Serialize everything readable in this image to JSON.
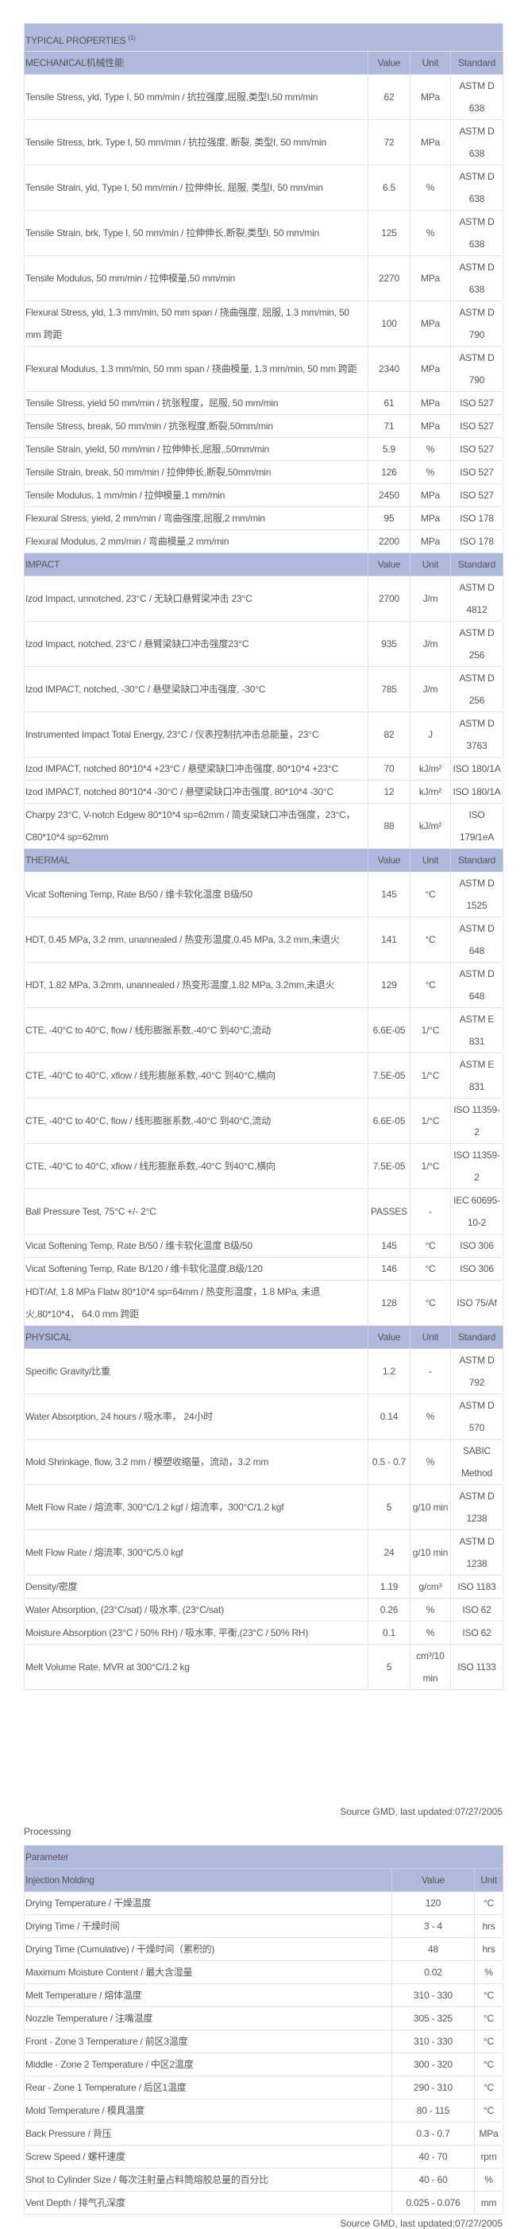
{
  "properties": {
    "title": "TYPICAL PROPERTIES",
    "title_sup": "(1)",
    "columns": [
      "Value",
      "Unit",
      "Standard"
    ],
    "sections": [
      {
        "name": "MECHANICAL机械性能",
        "rows": [
          [
            "Tensile Stress, yld, Type I, 50 mm/min / 抗拉强度,屈服,类型I,50 mm/min",
            "62",
            "MPa",
            "ASTM D 638"
          ],
          [
            "Tensile Stress, brk, Type I, 50 mm/min / 抗拉强度, 断裂, 类型I, 50 mm/min",
            "72",
            "MPa",
            "ASTM D 638"
          ],
          [
            "Tensile Strain, yld, Type I, 50 mm/min / 拉伸伸长, 屈服, 类型I, 50 mm/min",
            "6.5",
            "%",
            "ASTM D 638"
          ],
          [
            "Tensile Strain, brk, Type I, 50 mm/min / 拉伸伸长,断裂,类型I, 50 mm/min",
            "125",
            "%",
            "ASTM D 638"
          ],
          [
            "Tensile Modulus, 50 mm/min / 拉伸模量,50 mm/min",
            "2270",
            "MPa",
            "ASTM D 638"
          ],
          [
            "Flexural Stress, yld, 1.3 mm/min, 50 mm span / 挠曲强度, 屈服, 1.3 mm/min, 50 mm 跨距",
            "100",
            "MPa",
            "ASTM D 790"
          ],
          [
            "Flexural Modulus, 1.3 mm/min, 50 mm span / 挠曲模量, 1.3 mm/min, 50 mm 跨距",
            "2340",
            "MPa",
            "ASTM D 790"
          ],
          [
            "Tensile Stress, yield 50 mm/min / 抗张程度，屈服, 50 mm/min",
            "61",
            "MPa",
            "ISO 527"
          ],
          [
            "Tensile Stress, break, 50 mm/min / 抗张程度,断裂,50mm/min",
            "71",
            "MPa",
            "ISO 527"
          ],
          [
            "Tensile Strain, yield, 50 mm/min / 拉伸伸长,屈服,,50mm/min",
            "5.9",
            "%",
            "ISO 527"
          ],
          [
            "Tensile Strain, break, 50 mm/min / 拉伸伸长,断裂,50mm/min",
            "126",
            "%",
            "ISO 527"
          ],
          [
            "Tensile Modulus, 1 mm/min / 拉伸模量,1 mm/min",
            "2450",
            "MPa",
            "ISO 527"
          ],
          [
            "Flexural Stress, yield, 2 mm/min / 弯曲强度,屈服,2 mm/min",
            "95",
            "MPa",
            "ISO 178"
          ],
          [
            "Flexural Modulus, 2 mm/min / 弯曲模量,2 mm/min",
            "2200",
            "MPa",
            "ISO 178"
          ]
        ]
      },
      {
        "name": "IMPACT",
        "rows": [
          [
            "Izod Impact, unnotched, 23°C / 无缺口悬臂梁冲击 23°C",
            "2700",
            "J/m",
            "ASTM D 4812"
          ],
          [
            "Izod Impact, notched, 23°C / 悬臂梁缺口冲击强度23°C",
            "935",
            "J/m",
            "ASTM D 256"
          ],
          [
            "Izod IMPACT, notched, -30°C / 悬壁梁缺口冲击强度, -30°C",
            "785",
            "J/m",
            "ASTM D 256"
          ],
          [
            "Instrumented Impact Total Energy, 23°C / 仪表控制抗冲击总能量，23°C",
            "82",
            "J",
            "ASTM D 3763"
          ],
          [
            "Izod IMPACT, notched 80*10*4 +23°C / 悬壁梁缺口冲击强度, 80*10*4 +23°C",
            "70",
            "kJ/m²",
            "ISO 180/1A"
          ],
          [
            "Izod IMPACT, notched 80*10*4 -30°C / 悬壁梁缺口冲击强度, 80*10*4 -30°C",
            "12",
            "kJ/m²",
            "ISO 180/1A"
          ],
          [
            "Charpy 23°C, V-notch Edgew 80*10*4 sp=62mm / 简支梁缺口冲击强度，23°C，C80*10*4 sp=62mm",
            "88",
            "kJ/m²",
            "ISO 179/1eA"
          ]
        ]
      },
      {
        "name": "THERMAL",
        "rows": [
          [
            "Vicat Softening Temp, Rate B/50 / 维卡软化温度 B级/50",
            "145",
            "°C",
            "ASTM D 1525"
          ],
          [
            "HDT, 0.45 MPa, 3.2 mm, unannealed / 热变形温度,0.45 MPa, 3.2 mm,未退火",
            "141",
            "°C",
            "ASTM D 648"
          ],
          [
            "HDT, 1.82 MPa, 3.2mm, unannealed / 热变形温度,1.82 MPa, 3.2mm,未退火",
            "129",
            "°C",
            "ASTM D 648"
          ],
          [
            "CTE, -40°C to 40°C, flow / 线形膨胀系数,-40°C 到40°C,流动",
            "6.6E-05",
            "1/°C",
            "ASTM E 831"
          ],
          [
            "CTE, -40°C to 40°C, xflow / 线形膨胀系数,-40°C 到40°C,横向",
            "7.5E-05",
            "1/°C",
            "ASTM E 831"
          ],
          [
            "CTE, -40°C to 40°C, flow / 线形膨胀系数,-40°C 到40°C,流动",
            "6.6E-05",
            "1/°C",
            "ISO 11359-2"
          ],
          [
            "CTE, -40°C to 40°C, xflow / 线形膨胀系数,-40°C 到40°C,横向",
            "7.5E-05",
            "1/°C",
            "ISO 11359-2"
          ],
          [
            "Ball Pressure Test, 75°C +/- 2°C",
            "PASSES",
            "-",
            "IEC 60695-10-2"
          ],
          [
            "Vicat Softening Temp, Rate B/50 / 维卡软化温度 B级/50",
            "145",
            "°C",
            "ISO 306"
          ],
          [
            "Vicat Softening Temp, Rate B/120 / 维卡软化温度,B级/120",
            "146",
            "°C",
            "ISO 306"
          ],
          [
            "HDT/Af, 1.8 MPa Flatw 80*10*4 sp=64mm / 热变形温度，1.8 MPa, 未退火,80*10*4， 64.0 mm 跨距",
            "128",
            "°C",
            "ISO 75/Af"
          ]
        ]
      },
      {
        "name": "PHYSICAL",
        "rows": [
          [
            "Specific Gravity/比重",
            "1.2",
            "-",
            "ASTM D 792"
          ],
          [
            "Water Absorption, 24 hours / 吸水率， 24小时",
            "0.14",
            "%",
            "ASTM D 570"
          ],
          [
            "Mold Shrinkage, flow, 3.2 mm / 模塑收缩量，流动，3.2 mm",
            "0.5 - 0.7",
            "%",
            "SABIC Method"
          ],
          [
            "Melt Flow Rate / 熔流率, 300°C/1.2 kgf / 熔流率，300°C/1.2 kgf",
            "5",
            "g/10 min",
            "ASTM D 1238"
          ],
          [
            "Melt Flow Rate / 熔流率, 300°C/5.0 kgf",
            "24",
            "g/10 min",
            "ASTM D 1238"
          ],
          [
            "Density/密度",
            "1.19",
            "g/cm³",
            "ISO 1183"
          ],
          [
            "Water Absorption, (23°C/sat) / 吸水率, (23°C/sat)",
            "0.26",
            "%",
            "ISO 62"
          ],
          [
            "Moisture Absorption (23°C / 50% RH) / 吸水率, 平衡,(23°C / 50% RH)",
            "0.1",
            "%",
            "ISO 62"
          ],
          [
            "Melt Volume Rate, MVR at 300°C/1.2 kg",
            "5",
            "cm³/10 min",
            "ISO 1133"
          ]
        ]
      }
    ],
    "source": "Source GMD, last updated:07/27/2005"
  },
  "processing": {
    "label": "Processing",
    "title": "Parameter",
    "section": "Injection Molding",
    "columns": [
      "Value",
      "Unit"
    ],
    "rows": [
      [
        "Drying Temperature / 干燥温度",
        "120",
        "°C"
      ],
      [
        "Drying Time / 干燥时间",
        "3 - 4",
        "hrs"
      ],
      [
        "Drying Time (Cumulative) / 干燥时间（累积的)",
        "48",
        "hrs"
      ],
      [
        "Maximum Moisture Content / 最大含湿量",
        "0.02",
        "%"
      ],
      [
        "Melt Temperature / 熔体温度",
        "310 - 330",
        "°C"
      ],
      [
        "Nozzle Temperature / 注嘴温度",
        "305 - 325",
        "°C"
      ],
      [
        "Front - Zone 3 Temperature / 前区3温度",
        "310 - 330",
        "°C"
      ],
      [
        "Middle - Zone 2 Temperature / 中区2温度",
        "300 - 320",
        "°C"
      ],
      [
        "Rear - Zone 1 Temperature / 后区1温度",
        "290 - 310",
        "°C"
      ],
      [
        "Mold Temperature / 模具温度",
        "80 - 115",
        "°C"
      ],
      [
        "Back Pressure / 背压",
        "0.3 - 0.7",
        "MPa"
      ],
      [
        "Screw Speed / 螺杆速度",
        "40 - 70",
        "rpm"
      ],
      [
        "Shot to Cylinder Size / 每次注射量占料筒熔胶总量的百分比",
        "40 - 60",
        "%"
      ],
      [
        "Vent Depth / 排气孔深度",
        "0.025 - 0.076",
        "mm"
      ]
    ],
    "source": "Source GMD, last updated:07/27/2005"
  },
  "colors": {
    "header_bg": "#aeb9db",
    "table_border": "#333333",
    "text": "#555555"
  }
}
